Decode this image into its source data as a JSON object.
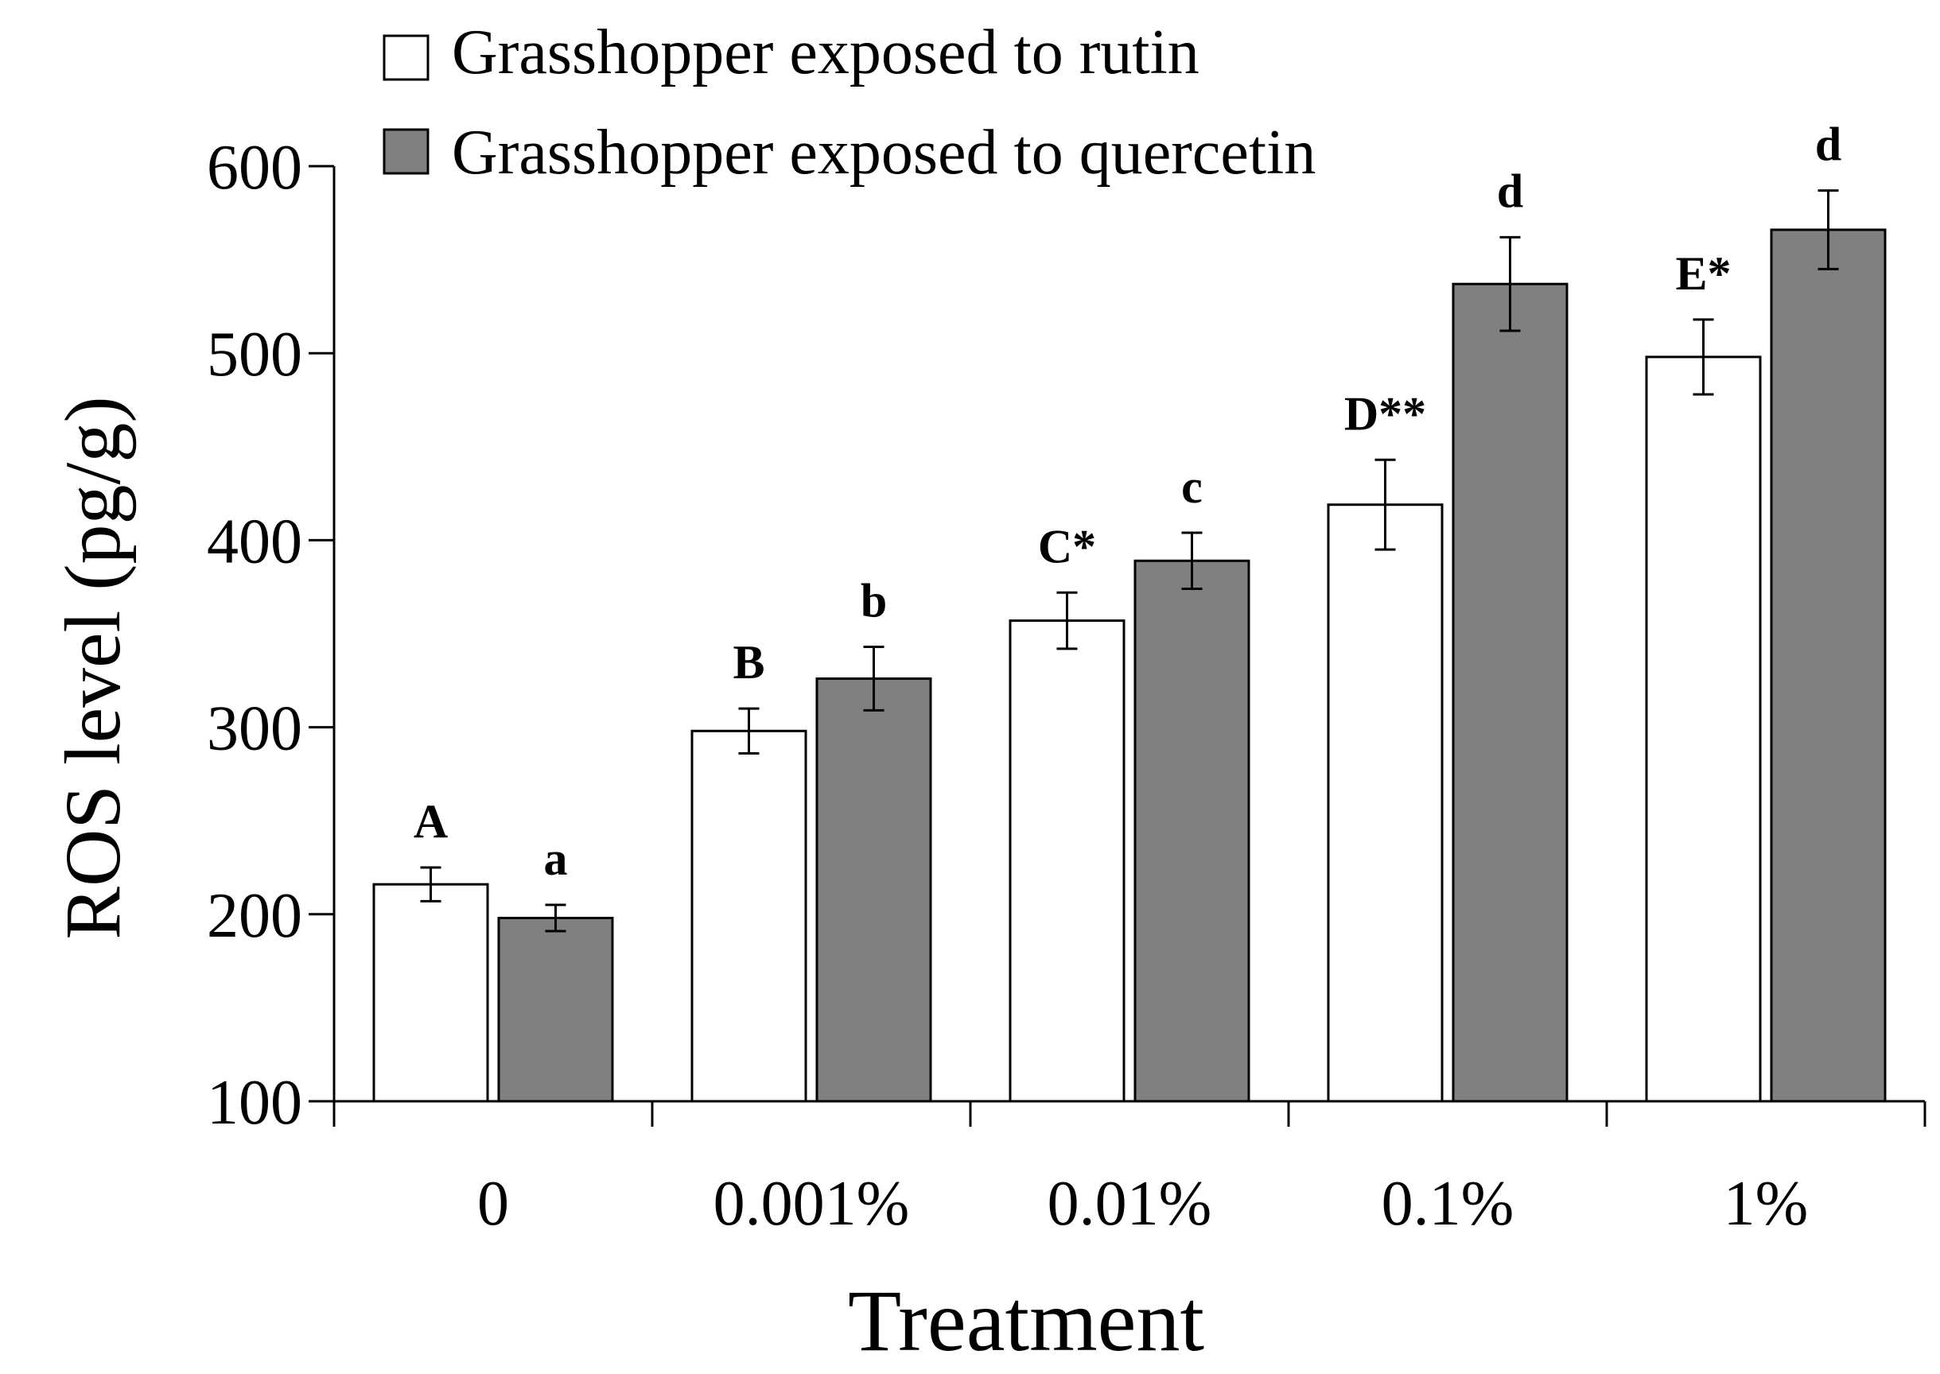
{
  "chart_data": {
    "type": "bar",
    "title": "",
    "xlabel": "Treatment",
    "ylabel": "ROS level (pg/g)",
    "ylim": [
      100,
      600
    ],
    "yticks": [
      100,
      200,
      300,
      400,
      500,
      600
    ],
    "categories": [
      "0",
      "0.001%",
      "0.01%",
      "0.1%",
      "1%"
    ],
    "legend_position": "top-left",
    "grid": false,
    "series": [
      {
        "name": "Grasshopper exposed to rutin",
        "color": "#ffffff",
        "values": [
          216,
          298,
          357,
          419,
          498
        ],
        "errors": [
          9,
          12,
          15,
          24,
          20
        ],
        "labels": [
          "A",
          "B",
          "C*",
          "D**",
          "E*"
        ]
      },
      {
        "name": "Grasshopper exposed to quercetin",
        "color": "#808080",
        "values": [
          198,
          326,
          389,
          537,
          566
        ],
        "errors": [
          7,
          17,
          15,
          25,
          21
        ],
        "labels": [
          "a",
          "b",
          "c",
          "d",
          "d"
        ]
      }
    ]
  }
}
